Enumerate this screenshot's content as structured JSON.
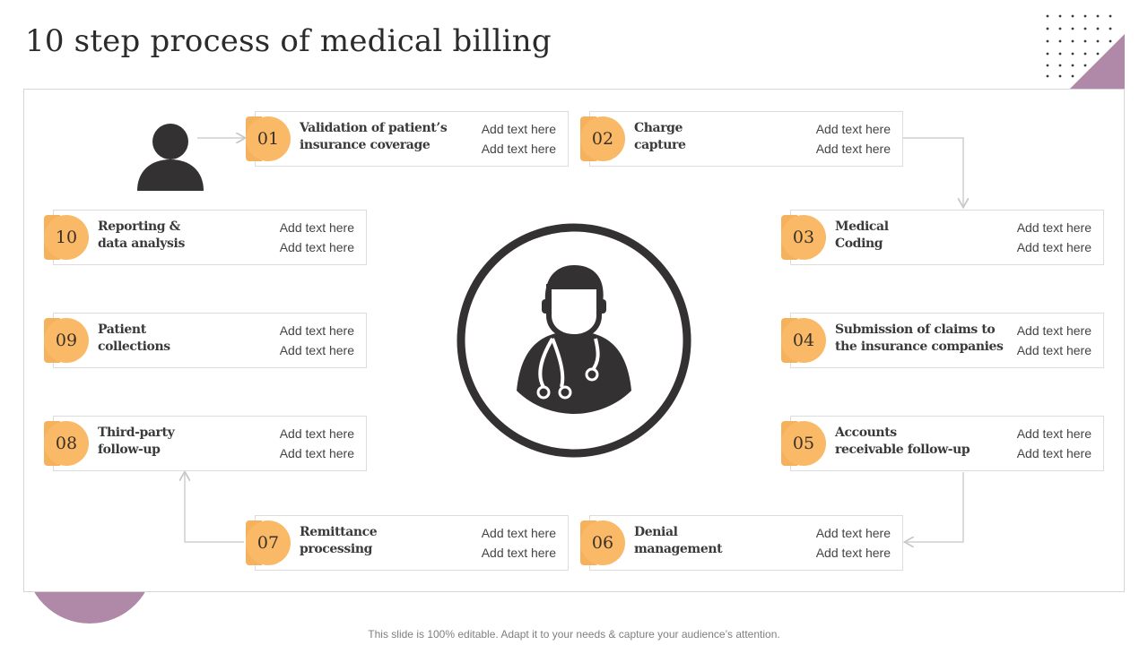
{
  "title": "10 step process of medical billing",
  "footer": "This slide is 100% editable. Adapt it to your needs & capture your audience’s attention.",
  "colors": {
    "accent_orange": "#f9b967",
    "accent_purple": "#b089a8",
    "icon_dark": "#333132"
  },
  "icons": {
    "patient": "person-icon",
    "center": "doctor-stethoscope-icon"
  },
  "steps": [
    {
      "number": "01",
      "label_line1": "Validation of patient’s",
      "label_line2": "insurance coverage",
      "note1": "Add text here",
      "note2": "Add text here"
    },
    {
      "number": "02",
      "label_line1": "Charge",
      "label_line2": "capture",
      "note1": "Add text here",
      "note2": "Add text here"
    },
    {
      "number": "03",
      "label_line1": "Medical",
      "label_line2": "Coding",
      "note1": "Add text here",
      "note2": "Add text here"
    },
    {
      "number": "04",
      "label_line1": "Submission of claims to",
      "label_line2": "the insurance companies",
      "note1": "Add text here",
      "note2": "Add text here"
    },
    {
      "number": "05",
      "label_line1": "Accounts",
      "label_line2": "receivable follow-up",
      "note1": "Add text here",
      "note2": "Add text here"
    },
    {
      "number": "06",
      "label_line1": "Denial",
      "label_line2": "management",
      "note1": "Add text here",
      "note2": "Add text here"
    },
    {
      "number": "07",
      "label_line1": "Remittance",
      "label_line2": "processing",
      "note1": "Add text here",
      "note2": "Add text here"
    },
    {
      "number": "08",
      "label_line1": "Third-party",
      "label_line2": "follow-up",
      "note1": "Add text here",
      "note2": "Add text here"
    },
    {
      "number": "09",
      "label_line1": "Patient",
      "label_line2": "collections",
      "note1": "Add text here",
      "note2": "Add text here"
    },
    {
      "number": "10",
      "label_line1": "Reporting &",
      "label_line2": "data analysis",
      "note1": "Add text here",
      "note2": "Add text here"
    }
  ]
}
